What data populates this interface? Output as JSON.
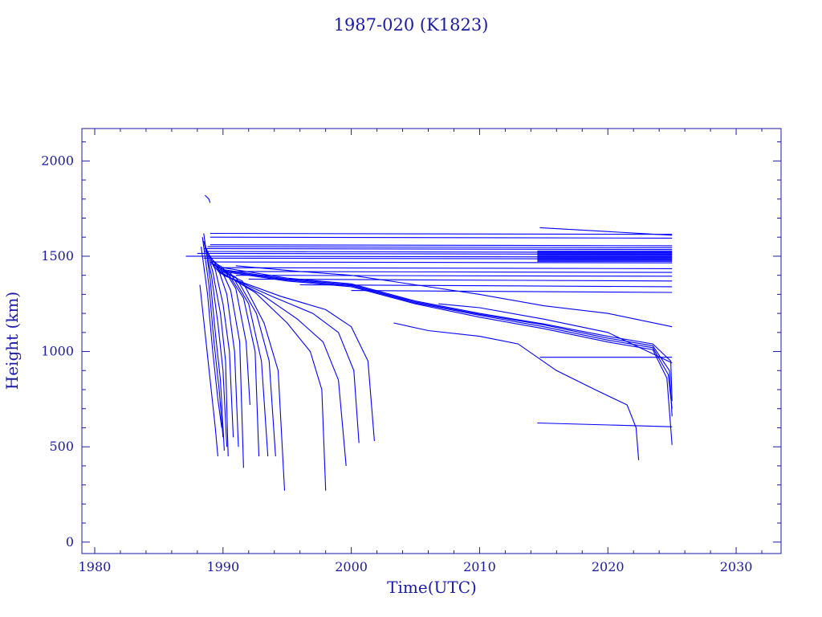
{
  "chart_data": {
    "type": "line",
    "title": "1987-020 (K1823)",
    "xlabel": "Time(UTC)",
    "ylabel": "Height (km)",
    "xlim": [
      1979,
      2033.5
    ],
    "ylim": [
      -60,
      2170
    ],
    "xticks": [
      "1980",
      "1990",
      "2000",
      "2010",
      "2020",
      "2030"
    ],
    "yticks": [
      "0",
      "500",
      "1000",
      "1500",
      "2000"
    ],
    "grid": false,
    "colors": {
      "axis": "#1a1aa8",
      "series": "#0000ff"
    },
    "decay_series": [
      {
        "x": [
          1988.2,
          1988.6,
          1989.0,
          1989.4,
          1989.6
        ],
        "y": [
          1350,
          1100,
          850,
          600,
          450
        ]
      },
      {
        "x": [
          1988.3,
          1988.8,
          1989.2,
          1989.6,
          1989.9
        ],
        "y": [
          1550,
          1300,
          1000,
          750,
          600
        ]
      },
      {
        "x": [
          1988.4,
          1988.9,
          1989.3,
          1989.7,
          1990.0
        ],
        "y": [
          1600,
          1350,
          1050,
          800,
          550
        ]
      },
      {
        "x": [
          1988.5,
          1989.0,
          1989.4,
          1989.8,
          1990.1
        ],
        "y": [
          1620,
          1380,
          1100,
          850,
          480
        ]
      },
      {
        "x": [
          1988.5,
          1989.1,
          1989.6,
          1990.0,
          1990.3
        ],
        "y": [
          1580,
          1400,
          1150,
          900,
          500
        ]
      },
      {
        "x": [
          1988.6,
          1989.2,
          1989.8,
          1990.2,
          1990.4
        ],
        "y": [
          1560,
          1420,
          1200,
          950,
          450
        ]
      },
      {
        "x": [
          1988.7,
          1989.4,
          1990.0,
          1990.5,
          1990.8
        ],
        "y": [
          1540,
          1430,
          1250,
          1000,
          550
        ]
      },
      {
        "x": [
          1988.8,
          1989.6,
          1990.3,
          1990.9,
          1991.2
        ],
        "y": [
          1520,
          1440,
          1300,
          1000,
          500
        ]
      },
      {
        "x": [
          1988.9,
          1989.8,
          1990.6,
          1991.3,
          1991.6
        ],
        "y": [
          1500,
          1440,
          1320,
          1050,
          390
        ]
      },
      {
        "x": [
          1989.0,
          1990.0,
          1991.0,
          1991.8,
          1992.1
        ],
        "y": [
          1480,
          1440,
          1330,
          1050,
          720
        ]
      },
      {
        "x": [
          1989.0,
          1990.3,
          1991.6,
          1992.5,
          1992.8
        ],
        "y": [
          1470,
          1420,
          1280,
          1000,
          450
        ]
      },
      {
        "x": [
          1989.1,
          1990.6,
          1992.0,
          1993.0,
          1993.5
        ],
        "y": [
          1460,
          1410,
          1250,
          950,
          450
        ]
      },
      {
        "x": [
          1989.2,
          1991.0,
          1992.6,
          1993.6,
          1994.1
        ],
        "y": [
          1450,
          1390,
          1200,
          950,
          450
        ]
      },
      {
        "x": [
          1989.3,
          1991.5,
          1993.2,
          1994.3,
          1994.8
        ],
        "y": [
          1440,
          1370,
          1150,
          900,
          270
        ]
      },
      {
        "x": [
          1989.5,
          1992.5,
          1995.0,
          1996.8,
          1997.7,
          1998.0
        ],
        "y": [
          1430,
          1310,
          1150,
          1000,
          800,
          270
        ]
      },
      {
        "x": [
          1989.6,
          1993.0,
          1995.8,
          1997.8,
          1999.0,
          1999.6
        ],
        "y": [
          1420,
          1300,
          1170,
          1050,
          850,
          400
        ]
      },
      {
        "x": [
          1989.8,
          1993.8,
          1997.0,
          1999.0,
          2000.2,
          2000.6
        ],
        "y": [
          1410,
          1290,
          1200,
          1100,
          900,
          520
        ]
      },
      {
        "x": [
          1990.0,
          1994.5,
          1998.0,
          2000.0,
          2001.3,
          2001.8
        ],
        "y": [
          1400,
          1290,
          1220,
          1130,
          950,
          530
        ]
      },
      {
        "x": [
          1990.0,
          1995.0,
          2000.0,
          2005.0,
          2010.0,
          2015.0,
          2020.0,
          2023.5,
          2024.6,
          2025.0
        ],
        "y": [
          1420,
          1370,
          1340,
          1250,
          1180,
          1120,
          1050,
          1010,
          860,
          510
        ]
      },
      {
        "x": [
          1990.0,
          1995.0,
          2000.0,
          2005.0,
          2010.0,
          2015.0,
          2020.0,
          2023.5,
          2024.7,
          2025.0
        ],
        "y": [
          1425,
          1375,
          1345,
          1255,
          1190,
          1130,
          1060,
          1020,
          880,
          700
        ]
      },
      {
        "x": [
          1990.0,
          1995.0,
          2000.0,
          2005.0,
          2010.0,
          2015.0,
          2020.0,
          2023.5,
          2024.8,
          2025.0
        ],
        "y": [
          1430,
          1380,
          1350,
          1260,
          1195,
          1140,
          1070,
          1030,
          900,
          660
        ]
      },
      {
        "x": [
          1990.0,
          1995.0,
          2000.0,
          2005.0,
          2010.0,
          2015.0,
          2020.0,
          2023.5,
          2024.9,
          2025.0
        ],
        "y": [
          1440,
          1385,
          1355,
          1265,
          1200,
          1145,
          1080,
          1040,
          950,
          740
        ]
      },
      {
        "x": [
          1991.0,
          1996.0,
          2000.0,
          2005.0,
          2010.0,
          2015.0,
          2020.0,
          2025.0
        ],
        "y": [
          1450,
          1420,
          1400,
          1350,
          1300,
          1240,
          1200,
          1130
        ]
      },
      {
        "x": [
          2003.3,
          2006.0,
          2010.0,
          2013.0,
          2016.0,
          2019.0,
          2021.5,
          2022.2,
          2022.4
        ],
        "y": [
          1150,
          1110,
          1080,
          1040,
          900,
          800,
          720,
          600,
          430
        ]
      },
      {
        "x": [
          2006.8,
          2010.0,
          2015.0,
          2020.0,
          2025.0
        ],
        "y": [
          1250,
          1230,
          1170,
          1100,
          940
        ]
      }
    ],
    "flat_series": [
      {
        "x": [
          1989.0,
          2025.0
        ],
        "y": [
          1620,
          1615
        ]
      },
      {
        "x": [
          1989.0,
          2025.0
        ],
        "y": [
          1600,
          1595
        ]
      },
      {
        "x": [
          1989.0,
          2025.0
        ],
        "y": [
          1560,
          1555
        ]
      },
      {
        "x": [
          1988.8,
          2025.0
        ],
        "y": [
          1550,
          1545
        ]
      },
      {
        "x": [
          1988.5,
          2025.0
        ],
        "y": [
          1540,
          1535
        ]
      },
      {
        "x": [
          1988.5,
          2025.0
        ],
        "y": [
          1525,
          1520
        ]
      },
      {
        "x": [
          1988.0,
          2025.0
        ],
        "y": [
          1515,
          1510
        ]
      },
      {
        "x": [
          1987.1,
          2025.0
        ],
        "y": [
          1500,
          1495
        ]
      },
      {
        "x": [
          1988.5,
          2025.0
        ],
        "y": [
          1490,
          1485
        ]
      },
      {
        "x": [
          1989.0,
          2025.0
        ],
        "y": [
          1470,
          1465
        ]
      },
      {
        "x": [
          1989.5,
          2025.0
        ],
        "y": [
          1440,
          1435
        ]
      },
      {
        "x": [
          1990.5,
          2025.0
        ],
        "y": [
          1420,
          1415
        ]
      },
      {
        "x": [
          1991.0,
          2025.0
        ],
        "y": [
          1400,
          1395
        ]
      },
      {
        "x": [
          1992.0,
          2025.0
        ],
        "y": [
          1380,
          1370
        ]
      },
      {
        "x": [
          1996.0,
          2025.0
        ],
        "y": [
          1350,
          1340
        ]
      },
      {
        "x": [
          2000.0,
          2025.0
        ],
        "y": [
          1320,
          1310
        ]
      },
      {
        "x": [
          2014.7,
          2025.0
        ],
        "y": [
          1650,
          1610
        ]
      },
      {
        "x": [
          2014.7,
          2025.0
        ],
        "y": [
          970,
          970
        ]
      },
      {
        "x": [
          2014.5,
          2025.0
        ],
        "y": [
          625,
          605
        ]
      },
      {
        "x": [
          1988.6,
          1988.9,
          1989.0
        ],
        "y": [
          1820,
          1800,
          1780
        ]
      }
    ],
    "dense_band": {
      "x": [
        2014.5,
        2025.0
      ],
      "y": [
        1470,
        1530
      ]
    }
  }
}
